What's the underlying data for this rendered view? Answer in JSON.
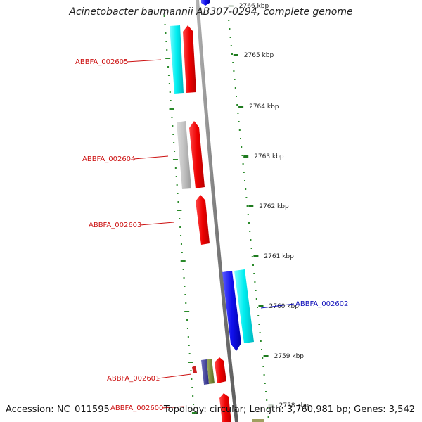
{
  "title": "Acinetobacter baumannii AB307-0294, complete genome",
  "footer": {
    "accession": "Accession: NC_011595",
    "summary": "Topology: circular; Length: 3,760,981 bp; Genes: 3,542"
  },
  "colors": {
    "backbone": "#8a8a8a",
    "tick": "#1e7a1e",
    "dot": "#2a8a2a",
    "label_red": "#cc1111",
    "label_blue": "#1111bb"
  },
  "ticks": [
    {
      "label": "2766 kbp",
      "faded": true
    },
    {
      "label": "2765 kbp"
    },
    {
      "label": "2764 kbp"
    },
    {
      "label": "2763 kbp"
    },
    {
      "label": "2762 kbp"
    },
    {
      "label": "2761 kbp"
    },
    {
      "label": "2760 kbp"
    },
    {
      "label": "2759 kbp"
    },
    {
      "label": "2758 kbp",
      "faded": true
    }
  ],
  "genes": [
    {
      "label": "ABBFA_002605",
      "color": "red"
    },
    {
      "label": "ABBFA_002604",
      "color": "red"
    },
    {
      "label": "ABBFA_002603",
      "color": "red"
    },
    {
      "label": "ABBFA_002602",
      "color": "blue"
    },
    {
      "label": "ABBFA_002601",
      "color": "red"
    },
    {
      "label": "ABBFA_002600",
      "color": "red"
    }
  ]
}
